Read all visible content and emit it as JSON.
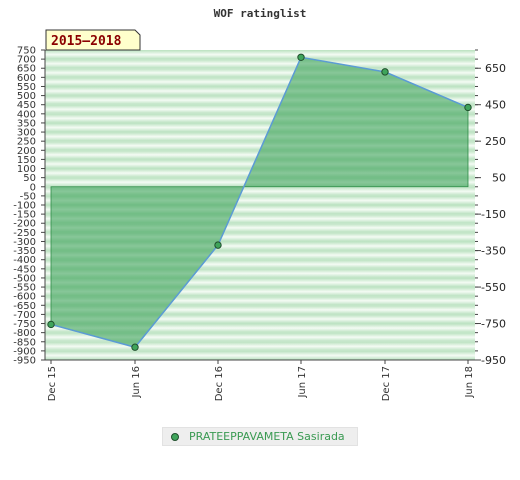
{
  "chart_data": {
    "type": "area",
    "title": "WOF ratinglist",
    "period_badge": "2015–2018",
    "x": [
      "Dec 15",
      "Jun 16",
      "Dec 16",
      "Jun 17",
      "Dec 17",
      "Jun 18"
    ],
    "series": [
      {
        "name": "PRATEEPPAVAMETA Sasirada",
        "values": [
          -755,
          -880,
          -320,
          710,
          630,
          435
        ]
      }
    ],
    "ylim": [
      -950,
      750
    ],
    "left_ticks": [
      750,
      700,
      650,
      600,
      550,
      500,
      450,
      400,
      350,
      300,
      250,
      200,
      150,
      100,
      50,
      0,
      -50,
      -100,
      -150,
      -200,
      -250,
      -300,
      -350,
      -400,
      -450,
      -500,
      -550,
      -600,
      -650,
      -700,
      -750,
      -800,
      -850,
      -900,
      -950
    ],
    "right_ticks": [
      650,
      450,
      250,
      50,
      -150,
      -350,
      -550,
      -750,
      -950
    ],
    "grid": true,
    "legend_position": "bottom",
    "colors": {
      "area_fill": "#3fa45b",
      "area_edge": "#2e8b47",
      "line": "#5b9bd5",
      "marker_fill": "#3fa45b",
      "marker_edge": "#1f4f2c",
      "badge_bg": "#ffffcc",
      "badge_text": "#8b0000",
      "band_dark": "#b9e1bf",
      "band_light": "#f4fbf4"
    }
  }
}
